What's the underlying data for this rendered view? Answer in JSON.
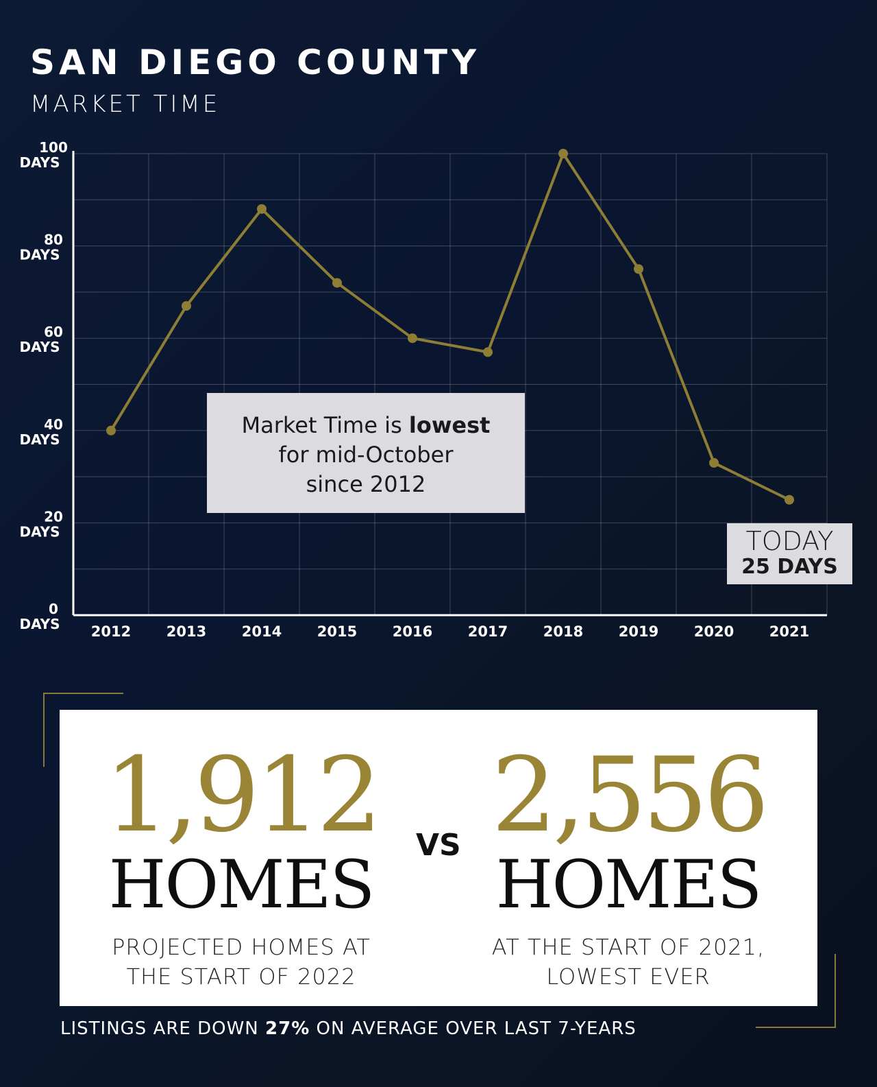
{
  "header": {
    "title": "SAN DIEGO COUNTY",
    "subtitle": "MARKET TIME"
  },
  "chart_data": {
    "type": "line",
    "x": [
      "2012",
      "2013",
      "2014",
      "2015",
      "2016",
      "2017",
      "2018",
      "2019",
      "2020",
      "2021"
    ],
    "series": [
      {
        "values": [
          40,
          67,
          88,
          72,
          60,
          57,
          100,
          75,
          33,
          25
        ]
      }
    ],
    "ylim": [
      0,
      100
    ],
    "y_ticks": [
      {
        "value": 0,
        "num": "0",
        "unit": "DAYS"
      },
      {
        "value": 20,
        "num": "20",
        "unit": "DAYS"
      },
      {
        "value": 40,
        "num": "40",
        "unit": "DAYS"
      },
      {
        "value": 60,
        "num": "60",
        "unit": "DAYS"
      },
      {
        "value": 80,
        "num": "80",
        "unit": "DAYS"
      },
      {
        "value": 100,
        "num": "100",
        "unit": "DAYS"
      }
    ],
    "grid": true,
    "line_color": "#8e7d35",
    "annotation": {
      "prefix": "Market Time is ",
      "bold": "lowest",
      "line2": "for mid-October",
      "line3": "since 2012"
    },
    "today_label": {
      "line1": "TODAY",
      "line2": "25 DAYS"
    }
  },
  "stats": {
    "left": {
      "number": "1,912",
      "unit": "HOMES",
      "desc_line1": "PROJECTED HOMES AT",
      "desc_line2": "THE START OF 2022"
    },
    "vs": "VS",
    "right": {
      "number": "2,556",
      "unit": "HOMES",
      "desc_line1": "AT THE START OF 2021,",
      "desc_line2": "LOWEST EVER"
    }
  },
  "footer": {
    "prefix": "LISTINGS ARE DOWN ",
    "bold": "27%",
    "suffix": " ON AVERAGE OVER LAST 7-YEARS"
  },
  "colors": {
    "gold": "#9a8436",
    "navy": "#0d1a33",
    "panel": "#dcdbe0"
  }
}
